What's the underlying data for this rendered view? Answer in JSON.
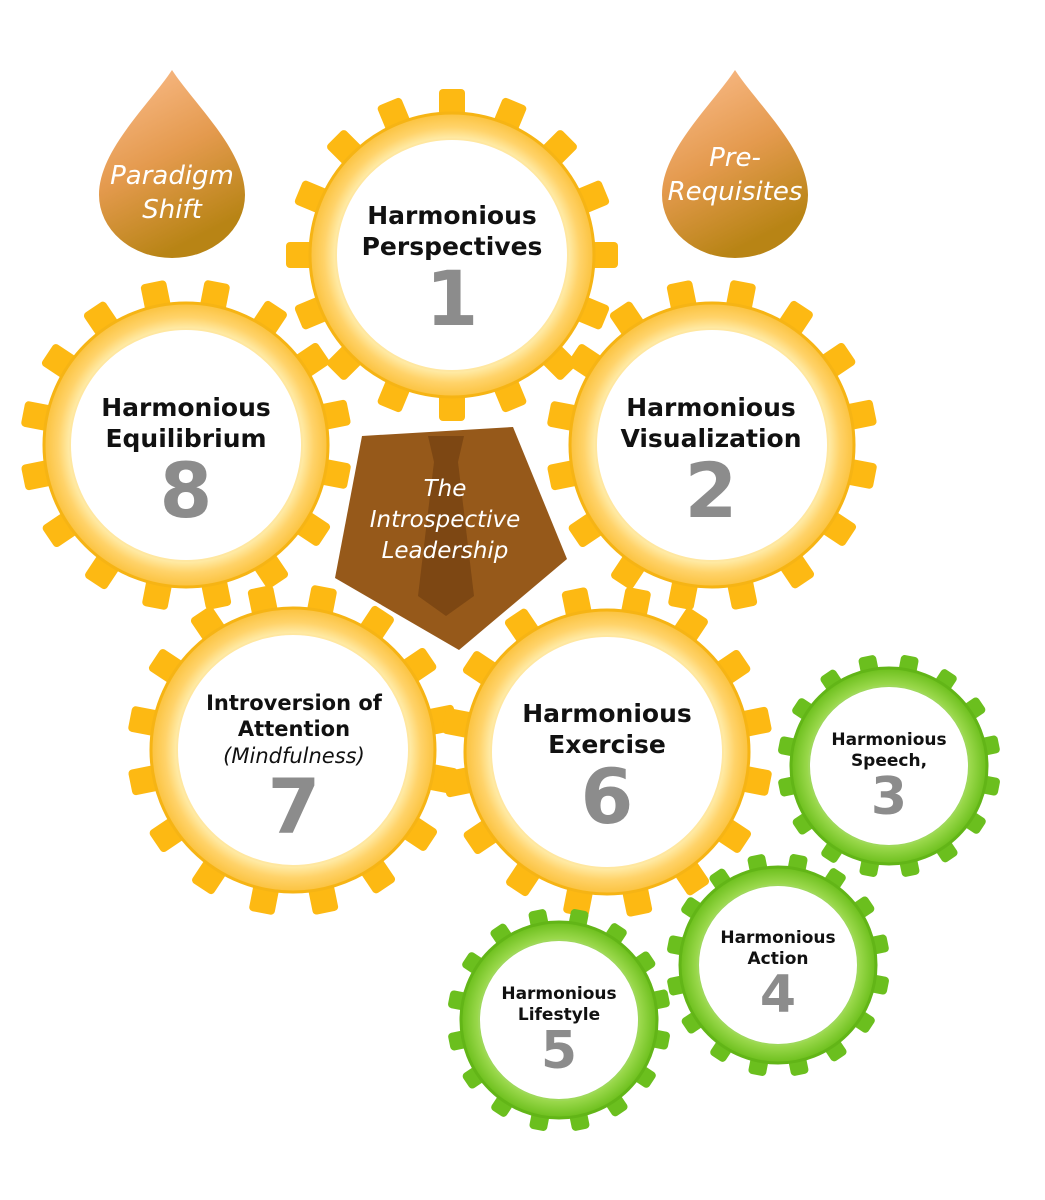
{
  "drops": [
    {
      "id": "paradigm",
      "line1": "Paradigm",
      "line2": "Shift"
    },
    {
      "id": "prereq",
      "line1": "Pre-",
      "line2": "Requisites"
    }
  ],
  "center": {
    "line1": "The",
    "line2": "Introspective",
    "line3": "Leadership"
  },
  "gears": [
    {
      "id": "g1",
      "line1": "Harmonious",
      "line2": "Perspectives",
      "number": "1",
      "color": "#f5b814"
    },
    {
      "id": "g2",
      "line1": "Harmonious",
      "line2": "Visualization",
      "number": "2",
      "color": "#f5b814"
    },
    {
      "id": "g8",
      "line1": "Harmonious",
      "line2": "Equilibrium",
      "number": "8",
      "color": "#f5b814"
    },
    {
      "id": "g7",
      "line1": "Introversion of",
      "line2": "Attention",
      "line3": "(Mindfulness)",
      "number": "7",
      "color": "#f5b814"
    },
    {
      "id": "g6",
      "line1": "Harmonious",
      "line2": "Exercise",
      "number": "6",
      "color": "#f5b814"
    },
    {
      "id": "g3",
      "line1": "Harmonious",
      "line2": "Speech,",
      "number": "3",
      "color": "#6cc01e"
    },
    {
      "id": "g4",
      "line1": "Harmonious",
      "line2": "Action",
      "number": "4",
      "color": "#6cc01e"
    },
    {
      "id": "g5",
      "line1": "Harmonious",
      "line2": "Lifestyle",
      "number": "5",
      "color": "#6cc01e"
    }
  ],
  "colors": {
    "gold_teeth": "#fdb913",
    "gold_ring_inner": "#fff0b0",
    "green_teeth": "#6bbf1e",
    "green_ring": "#8cd43a",
    "pentagon": "#96591a",
    "tie": "#7a4512",
    "drop_top": "#f8b383",
    "drop_bottom": "#c38a1a"
  }
}
